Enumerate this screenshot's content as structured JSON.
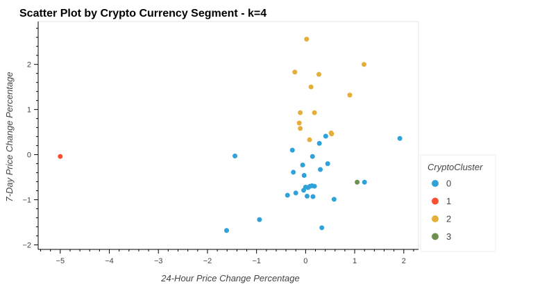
{
  "chart_data": {
    "type": "scatter",
    "title": "Scatter Plot by Crypto Currency Segment - k=4",
    "xlabel": "24-Hour Price Change Percentage",
    "ylabel": "7-Day Price Change Percentage",
    "xlim": [
      -5.45,
      2.3
    ],
    "ylim": [
      -2.1,
      2.95
    ],
    "xticks": [
      -5,
      -4,
      -3,
      -2,
      -1,
      0,
      1,
      2
    ],
    "yticks": [
      -2,
      -1,
      0,
      1,
      2
    ],
    "grid": false,
    "legend": {
      "title": "CryptoCluster",
      "placement": "right",
      "entries": [
        "0",
        "1",
        "2",
        "3"
      ]
    },
    "series": [
      {
        "name": "0",
        "color": "#30a2da",
        "points": [
          [
            1.92,
            0.36
          ],
          [
            1.2,
            -0.61
          ],
          [
            0.58,
            -0.99
          ],
          [
            0.45,
            -0.2
          ],
          [
            0.41,
            0.41
          ],
          [
            0.28,
            0.25
          ],
          [
            0.3,
            -0.33
          ],
          [
            0.33,
            -1.62
          ],
          [
            0.18,
            -0.7
          ],
          [
            0.14,
            -0.04
          ],
          [
            0.13,
            -0.69
          ],
          [
            0.15,
            -0.93
          ],
          [
            0.09,
            -0.7
          ],
          [
            0.05,
            -0.73
          ],
          [
            0.0,
            -0.72
          ],
          [
            0.03,
            -0.92
          ],
          [
            -0.04,
            -0.79
          ],
          [
            -0.03,
            -0.46
          ],
          [
            -0.06,
            -0.23
          ],
          [
            -0.2,
            -0.85
          ],
          [
            -0.25,
            -0.39
          ],
          [
            -0.27,
            0.1
          ],
          [
            -0.37,
            -0.9
          ],
          [
            -0.94,
            -1.44
          ],
          [
            -1.44,
            -0.03
          ],
          [
            -1.61,
            -1.68
          ]
        ]
      },
      {
        "name": "1",
        "color": "#fc4f30",
        "points": [
          [
            -5.0,
            -0.04
          ]
        ]
      },
      {
        "name": "2",
        "color": "#e5ae38",
        "points": [
          [
            0.02,
            2.56
          ],
          [
            -0.22,
            1.83
          ],
          [
            0.27,
            1.78
          ],
          [
            1.19,
            2.0
          ],
          [
            0.11,
            1.5
          ],
          [
            0.9,
            1.32
          ],
          [
            -0.11,
            0.93
          ],
          [
            0.18,
            0.93
          ],
          [
            -0.13,
            0.7
          ],
          [
            -0.11,
            0.58
          ],
          [
            0.52,
            0.48
          ],
          [
            0.53,
            0.46
          ],
          [
            0.08,
            0.33
          ]
        ]
      },
      {
        "name": "3",
        "color": "#6d904f",
        "points": [
          [
            1.05,
            -0.61
          ]
        ]
      }
    ]
  }
}
